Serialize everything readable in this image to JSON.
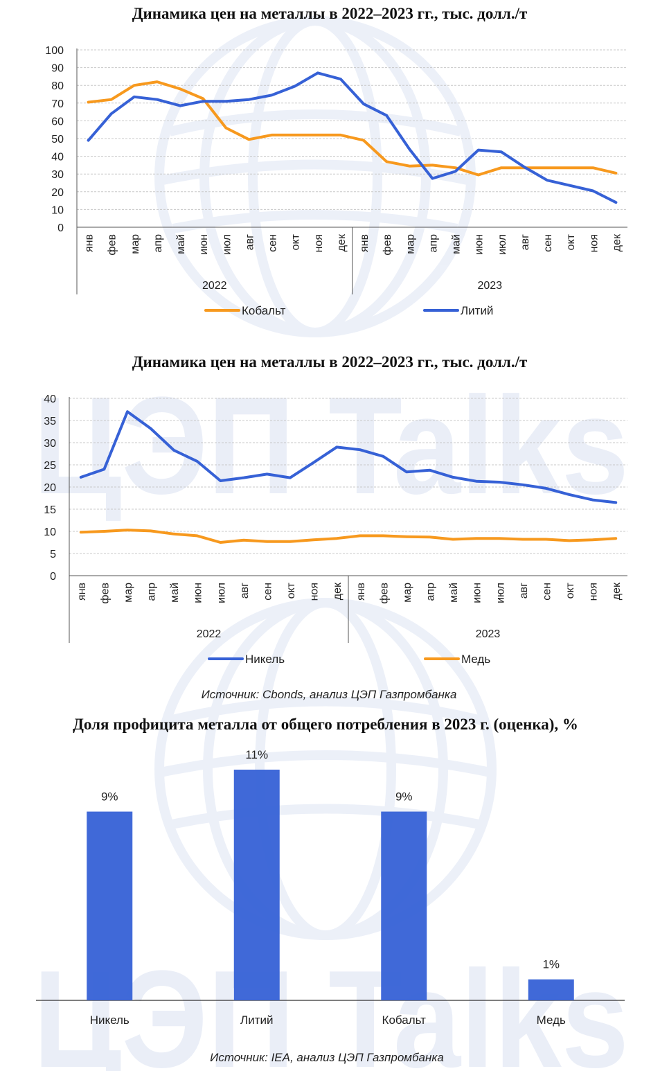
{
  "watermark": {
    "brand_text": "ЦЭП Talks"
  },
  "colors": {
    "cobalt": "#F7991E",
    "lithium": "#3661D6",
    "nickel": "#3661D6",
    "copper": "#F7991E",
    "bar": "#3661D6",
    "grid": "#c8c8c8",
    "watermark": "#1f4fb4"
  },
  "sources": {
    "top": "Источник: Cbonds, анализ ЦЭП Газпромбанка",
    "bottom": "Источник: IEA, анализ ЦЭП Газпромбанка"
  },
  "chart_data": [
    {
      "type": "line",
      "title": "Динамика цен на металлы в 2022–2023 гг., тыс. долл./т",
      "xlabel": "",
      "ylabel": "",
      "categories": [
        "янв",
        "фев",
        "мар",
        "апр",
        "май",
        "июн",
        "июл",
        "авг",
        "сен",
        "окт",
        "ноя",
        "дек",
        "янв",
        "фев",
        "мар",
        "апр",
        "май",
        "июн",
        "июл",
        "авг",
        "сен",
        "окт",
        "ноя",
        "дек"
      ],
      "year_groups": [
        "2022",
        "2023"
      ],
      "ylim": [
        0,
        100
      ],
      "yticks": [
        0,
        10,
        20,
        30,
        40,
        50,
        60,
        70,
        80,
        90,
        100
      ],
      "grid": true,
      "legend_position": "bottom",
      "series": [
        {
          "name": "Кобальт",
          "color": "#F7991E",
          "values": [
            70.5,
            72,
            80,
            82,
            78,
            72.5,
            56,
            49.5,
            52,
            52,
            52,
            52,
            49,
            37,
            34.5,
            35,
            33.5,
            29.5,
            33.5,
            33.5,
            33.5,
            33.5,
            33.5,
            30.5
          ]
        },
        {
          "name": "Литий",
          "color": "#3661D6",
          "values": [
            49,
            64,
            73.5,
            72,
            68.5,
            71,
            71,
            72,
            74.5,
            79.5,
            87,
            83.5,
            69.5,
            63,
            44,
            27.5,
            31.5,
            43.5,
            42.5,
            34,
            26.5,
            23.5,
            20.5,
            14
          ]
        }
      ]
    },
    {
      "type": "line",
      "title": "Динамика цен на металлы в 2022–2023 гг., тыс. долл./т",
      "xlabel": "",
      "ylabel": "",
      "categories": [
        "янв",
        "фев",
        "мар",
        "апр",
        "май",
        "июн",
        "июл",
        "авг",
        "сен",
        "окт",
        "ноя",
        "дек",
        "янв",
        "фев",
        "мар",
        "апр",
        "май",
        "июн",
        "июл",
        "авг",
        "сен",
        "окт",
        "ноя",
        "дек"
      ],
      "year_groups": [
        "2022",
        "2023"
      ],
      "ylim": [
        0,
        40
      ],
      "yticks": [
        0,
        5,
        10,
        15,
        20,
        25,
        30,
        35,
        40
      ],
      "grid": true,
      "legend_position": "bottom",
      "series": [
        {
          "name": "Никель",
          "color": "#3661D6",
          "values": [
            22.2,
            24,
            37,
            33.2,
            28.3,
            25.8,
            21.4,
            22.1,
            22.9,
            22.1,
            25.5,
            29,
            28.4,
            26.9,
            23.4,
            23.8,
            22.2,
            21.3,
            21.1,
            20.5,
            19.7,
            18.3,
            17.1,
            16.5
          ]
        },
        {
          "name": "Медь",
          "color": "#F7991E",
          "values": [
            9.8,
            10,
            10.3,
            10.1,
            9.4,
            9,
            7.5,
            8,
            7.7,
            7.7,
            8.1,
            8.4,
            9,
            9,
            8.8,
            8.7,
            8.2,
            8.4,
            8.4,
            8.2,
            8.2,
            7.9,
            8.1,
            8.4
          ]
        }
      ]
    },
    {
      "type": "bar",
      "title": "Доля профицита металла от общего потребления в 2023 г. (оценка), %",
      "xlabel": "",
      "ylabel": "",
      "categories": [
        "Никель",
        "Литий",
        "Кобальт",
        "Медь"
      ],
      "values": [
        9,
        11,
        9,
        1
      ],
      "value_labels": [
        "9%",
        "11%",
        "9%",
        "1%"
      ],
      "ylim": [
        0,
        13
      ],
      "grid": false,
      "series": [
        {
          "values": [
            9,
            11,
            9,
            1
          ],
          "color": "#3661D6"
        }
      ]
    }
  ]
}
